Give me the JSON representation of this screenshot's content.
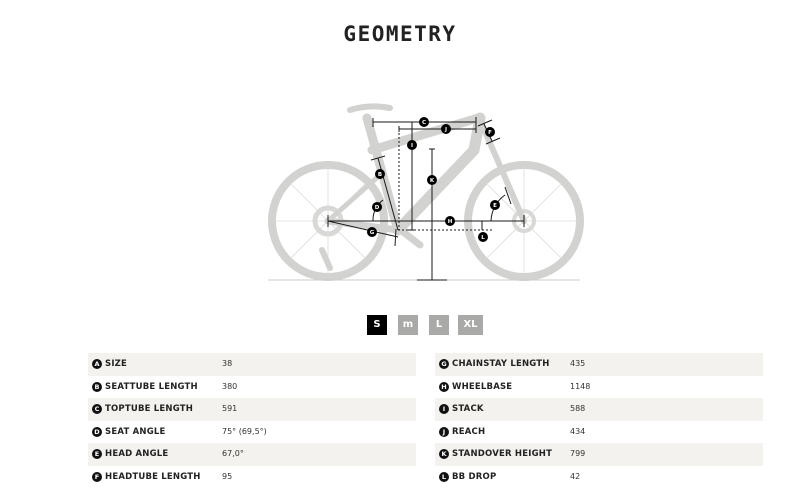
{
  "header": {
    "title": "GEOMETRY"
  },
  "sizes": [
    {
      "label": "S",
      "active": true
    },
    {
      "label": "m",
      "active": false
    },
    {
      "label": "L",
      "active": false
    },
    {
      "label": "XL",
      "active": false
    }
  ],
  "diagram_letters": [
    "A",
    "B",
    "C",
    "D",
    "E",
    "F",
    "G",
    "H",
    "I",
    "J",
    "K",
    "L"
  ],
  "colors": {
    "frame": "#d2d2d0",
    "lines": "#1a1a1a",
    "active_size": "#000000",
    "inactive_size": "#a9a9a7",
    "row_shade": "#f3f2ee"
  },
  "table_left": [
    {
      "letter": "A",
      "label": "Size",
      "value": "38"
    },
    {
      "letter": "B",
      "label": "Seattube length",
      "value": "380"
    },
    {
      "letter": "C",
      "label": "Toptube length",
      "value": "591"
    },
    {
      "letter": "D",
      "label": "Seat angle",
      "value": "75° (69,5°)"
    },
    {
      "letter": "E",
      "label": "Head angle",
      "value": "67,0°"
    },
    {
      "letter": "F",
      "label": "Headtube length",
      "value": "95"
    }
  ],
  "table_right": [
    {
      "letter": "G",
      "label": "Chainstay length",
      "value": "435"
    },
    {
      "letter": "H",
      "label": "Wheelbase",
      "value": "1148"
    },
    {
      "letter": "I",
      "label": "Stack",
      "value": "588"
    },
    {
      "letter": "J",
      "label": "Reach",
      "value": "434"
    },
    {
      "letter": "K",
      "label": "Standover height",
      "value": "799"
    },
    {
      "letter": "L",
      "label": "BB drop",
      "value": "42"
    }
  ]
}
